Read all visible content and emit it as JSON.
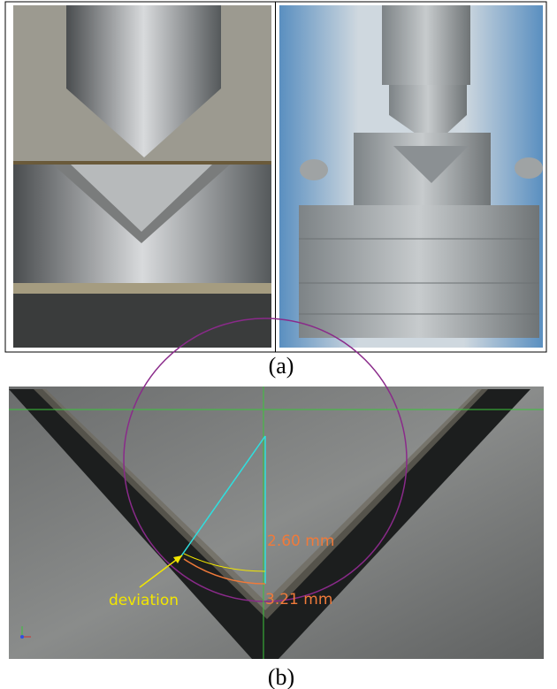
{
  "figure": {
    "panels": [
      {
        "label": "(a)"
      },
      {
        "label": "(b)",
        "annotations": {
          "inner_thickness": "2.60 mm",
          "outer_thickness": "3.21 mm",
          "arrow_label": "deviation"
        }
      }
    ]
  }
}
